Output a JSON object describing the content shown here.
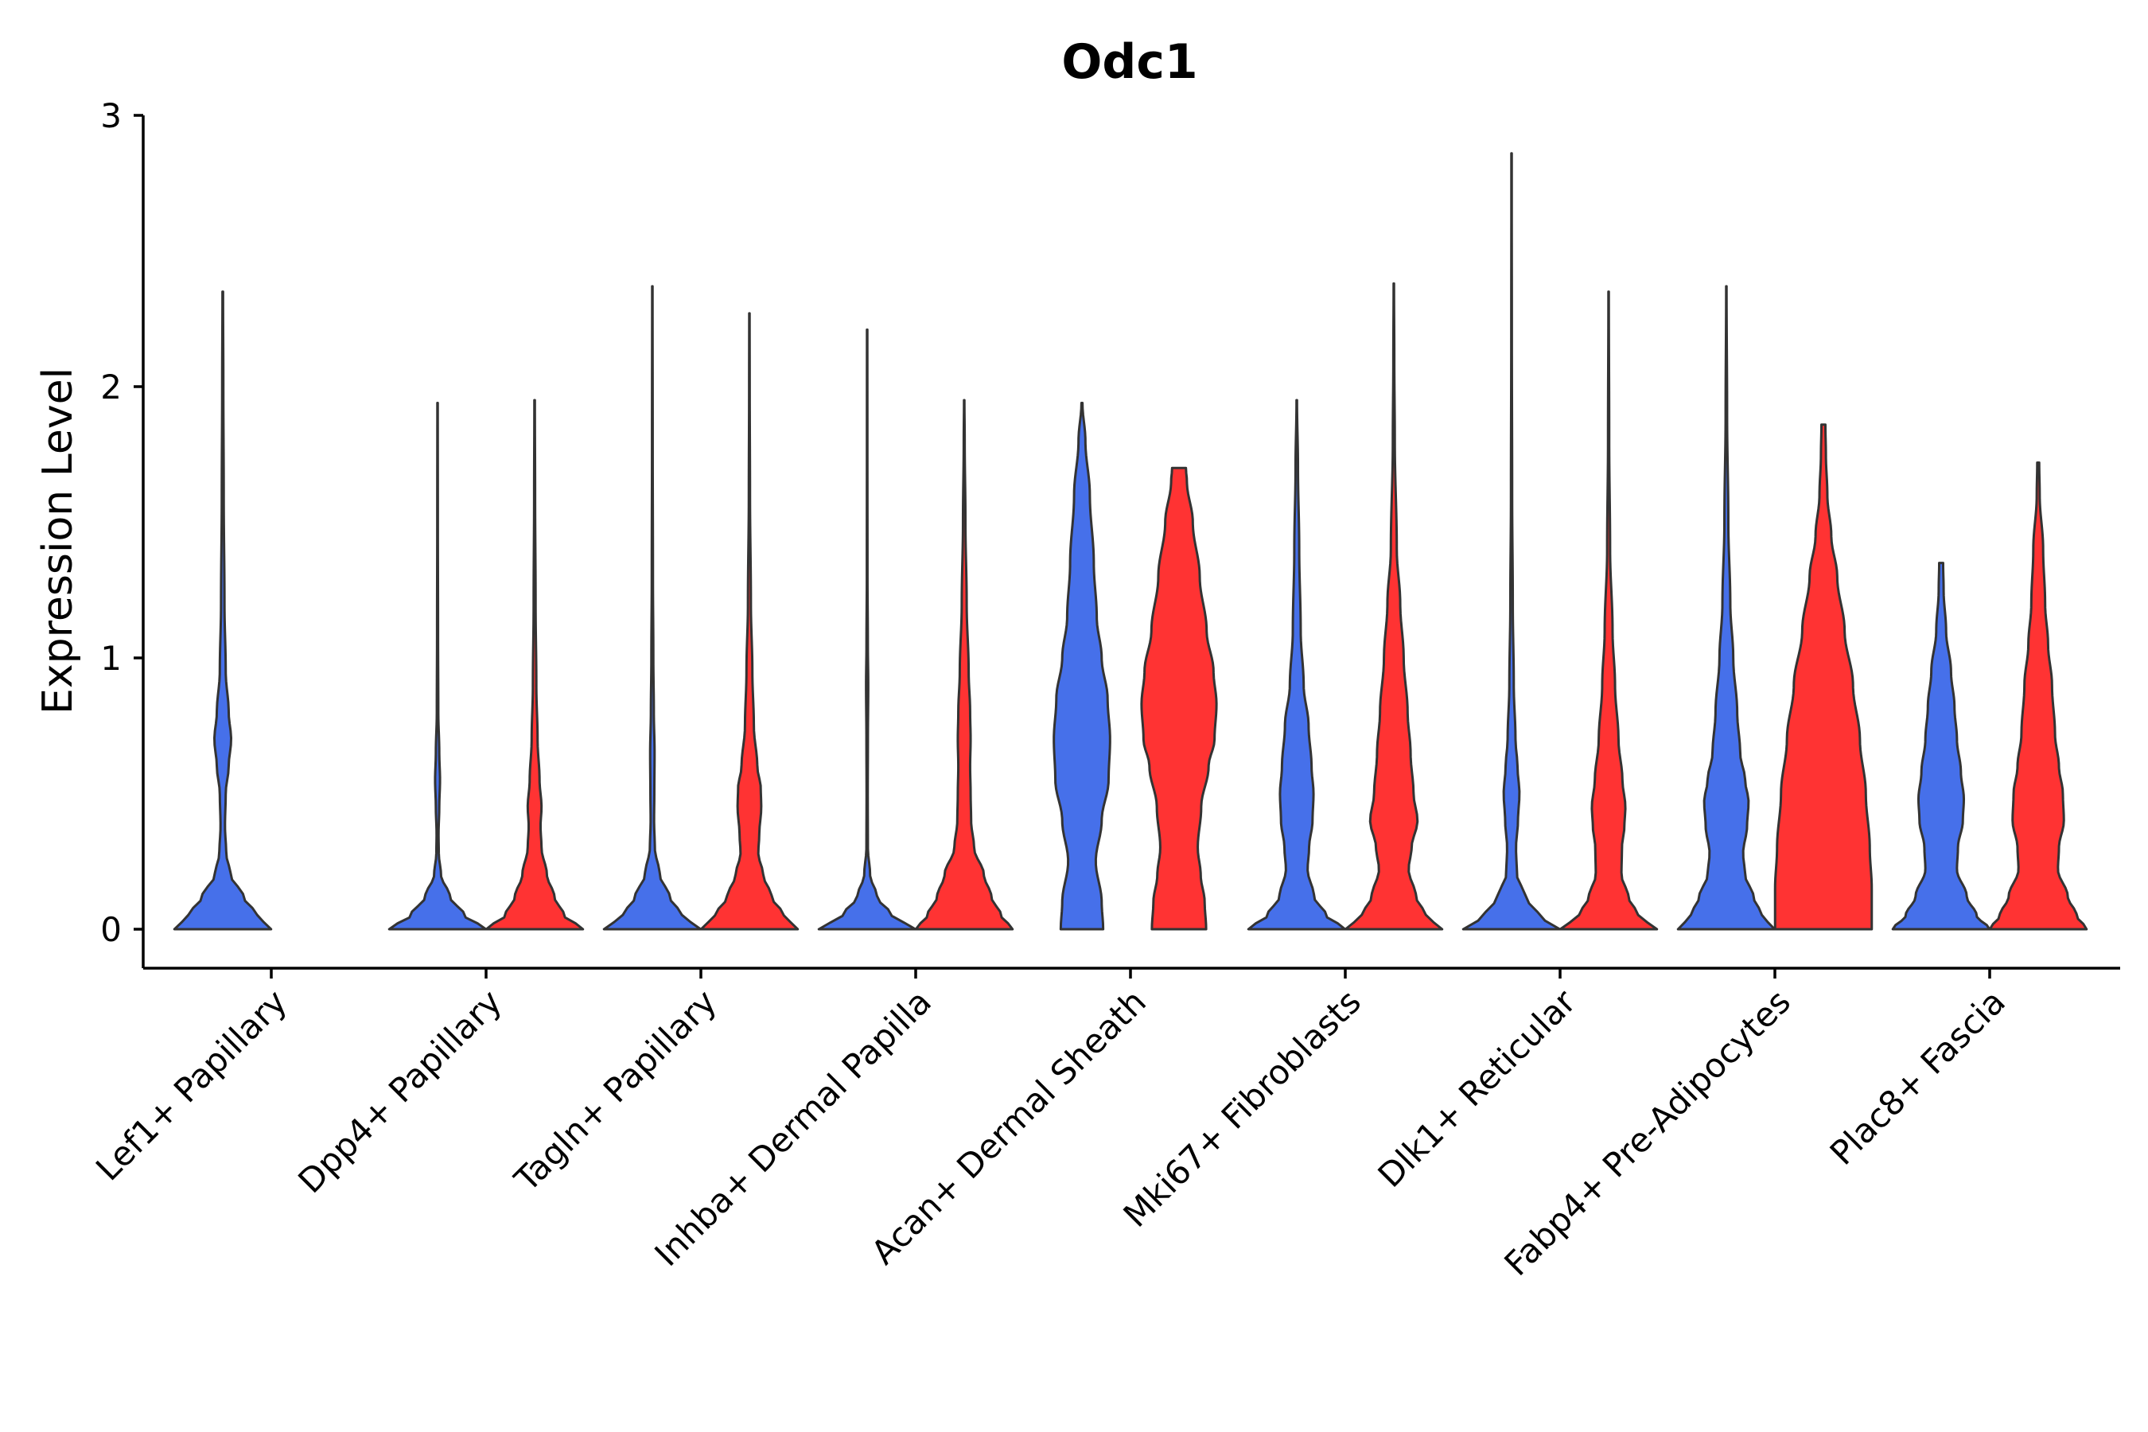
{
  "chart_data": {
    "type": "violin",
    "title": "Odc1",
    "ylabel": "Expression Level",
    "xlabel": "",
    "ylim": [
      -0.15,
      3.0
    ],
    "yticks": [
      0,
      1,
      2,
      3
    ],
    "colors": {
      "group_a": "#4670EA",
      "group_b": "#FF3333"
    },
    "categories": [
      "Lef1+ Papillary",
      "Dpp4+ Papillary",
      "Tagln+ Papillary",
      "Inhba+ Dermal Papilla",
      "Acan+ Dermal Sheath",
      "Mki67+ Fibroblasts",
      "Dlk1+ Reticular",
      "Fabp4+ Pre-Adipocytes",
      "Plac8+ Fascia"
    ],
    "violins": [
      {
        "category": "Lef1+ Papillary",
        "group": "a",
        "max": 2.35,
        "profile": [
          [
            0,
            0.98
          ],
          [
            0.05,
            0.7
          ],
          [
            0.12,
            0.42
          ],
          [
            0.2,
            0.16
          ],
          [
            0.28,
            0.07
          ],
          [
            0.38,
            0.045
          ],
          [
            0.5,
            0.06
          ],
          [
            0.6,
            0.12
          ],
          [
            0.7,
            0.17
          ],
          [
            0.8,
            0.12
          ],
          [
            0.95,
            0.06
          ],
          [
            1.2,
            0.035
          ],
          [
            1.6,
            0.02
          ],
          [
            2.0,
            0.012
          ],
          [
            2.35,
            0.006
          ]
        ]
      },
      {
        "category": "Dpp4+ Papillary",
        "group": "a",
        "max": 1.94,
        "profile": [
          [
            0,
            0.98
          ],
          [
            0.05,
            0.55
          ],
          [
            0.12,
            0.25
          ],
          [
            0.2,
            0.07
          ],
          [
            0.28,
            0.025
          ],
          [
            0.35,
            0.02
          ],
          [
            0.45,
            0.035
          ],
          [
            0.55,
            0.05
          ],
          [
            0.65,
            0.035
          ],
          [
            0.8,
            0.015
          ],
          [
            1.1,
            0.01
          ],
          [
            1.5,
            0.006
          ],
          [
            1.94,
            0.004
          ]
        ]
      },
      {
        "category": "Dpp4+ Papillary",
        "group": "b",
        "max": 1.95,
        "profile": [
          [
            0,
            0.98
          ],
          [
            0.05,
            0.6
          ],
          [
            0.12,
            0.4
          ],
          [
            0.2,
            0.25
          ],
          [
            0.3,
            0.14
          ],
          [
            0.38,
            0.12
          ],
          [
            0.45,
            0.14
          ],
          [
            0.55,
            0.1
          ],
          [
            0.7,
            0.06
          ],
          [
            0.9,
            0.035
          ],
          [
            1.2,
            0.02
          ],
          [
            1.6,
            0.01
          ],
          [
            1.95,
            0.005
          ]
        ]
      },
      {
        "category": "Tagln+ Papillary",
        "group": "a",
        "max": 2.37,
        "profile": [
          [
            0,
            0.98
          ],
          [
            0.05,
            0.6
          ],
          [
            0.12,
            0.35
          ],
          [
            0.2,
            0.15
          ],
          [
            0.3,
            0.05
          ],
          [
            0.4,
            0.035
          ],
          [
            0.5,
            0.04
          ],
          [
            0.65,
            0.045
          ],
          [
            0.8,
            0.03
          ],
          [
            1.0,
            0.02
          ],
          [
            1.3,
            0.012
          ],
          [
            1.8,
            0.007
          ],
          [
            2.37,
            0.004
          ]
        ]
      },
      {
        "category": "Tagln+ Papillary",
        "group": "b",
        "max": 2.27,
        "profile": [
          [
            0,
            0.98
          ],
          [
            0.05,
            0.7
          ],
          [
            0.12,
            0.45
          ],
          [
            0.2,
            0.28
          ],
          [
            0.28,
            0.18
          ],
          [
            0.35,
            0.2
          ],
          [
            0.45,
            0.24
          ],
          [
            0.52,
            0.23
          ],
          [
            0.6,
            0.16
          ],
          [
            0.75,
            0.09
          ],
          [
            0.95,
            0.06
          ],
          [
            1.2,
            0.03
          ],
          [
            1.6,
            0.012
          ],
          [
            2.0,
            0.006
          ],
          [
            2.27,
            0.004
          ]
        ]
      },
      {
        "category": "Inhba+ Dermal Papilla",
        "group": "a",
        "max": 2.21,
        "profile": [
          [
            0,
            0.98
          ],
          [
            0.05,
            0.5
          ],
          [
            0.12,
            0.2
          ],
          [
            0.2,
            0.06
          ],
          [
            0.3,
            0.015
          ],
          [
            0.5,
            0.012
          ],
          [
            0.7,
            0.015
          ],
          [
            0.9,
            0.022
          ],
          [
            1.05,
            0.014
          ],
          [
            1.3,
            0.007
          ],
          [
            1.8,
            0.005
          ],
          [
            2.21,
            0.004
          ]
        ]
      },
      {
        "category": "Inhba+ Dermal Papilla",
        "group": "b",
        "max": 1.95,
        "profile": [
          [
            0,
            0.98
          ],
          [
            0.05,
            0.75
          ],
          [
            0.12,
            0.55
          ],
          [
            0.2,
            0.4
          ],
          [
            0.3,
            0.2
          ],
          [
            0.4,
            0.14
          ],
          [
            0.5,
            0.13
          ],
          [
            0.6,
            0.12
          ],
          [
            0.7,
            0.13
          ],
          [
            0.8,
            0.12
          ],
          [
            0.95,
            0.09
          ],
          [
            1.2,
            0.05
          ],
          [
            1.5,
            0.025
          ],
          [
            1.8,
            0.01
          ],
          [
            1.95,
            0.004
          ]
        ]
      },
      {
        "category": "Acan+ Dermal Sheath",
        "group": "a",
        "max": 1.94,
        "profile": [
          [
            0,
            0.43
          ],
          [
            0.1,
            0.4
          ],
          [
            0.25,
            0.28
          ],
          [
            0.4,
            0.4
          ],
          [
            0.55,
            0.54
          ],
          [
            0.7,
            0.57
          ],
          [
            0.85,
            0.52
          ],
          [
            1.0,
            0.4
          ],
          [
            1.15,
            0.3
          ],
          [
            1.35,
            0.24
          ],
          [
            1.6,
            0.16
          ],
          [
            1.8,
            0.07
          ],
          [
            1.94,
            0.01
          ]
        ]
      },
      {
        "category": "Acan+ Dermal Sheath",
        "group": "b",
        "max": 1.7,
        "profile": [
          [
            0,
            0.55
          ],
          [
            0.1,
            0.52
          ],
          [
            0.2,
            0.44
          ],
          [
            0.3,
            0.38
          ],
          [
            0.45,
            0.45
          ],
          [
            0.6,
            0.6
          ],
          [
            0.7,
            0.72
          ],
          [
            0.83,
            0.76
          ],
          [
            0.95,
            0.7
          ],
          [
            1.1,
            0.56
          ],
          [
            1.3,
            0.42
          ],
          [
            1.5,
            0.28
          ],
          [
            1.65,
            0.16
          ],
          [
            1.7,
            0.14
          ]
        ]
      },
      {
        "category": "Mki67+ Fibroblasts",
        "group": "a",
        "max": 1.95,
        "profile": [
          [
            0,
            0.98
          ],
          [
            0.05,
            0.6
          ],
          [
            0.12,
            0.35
          ],
          [
            0.22,
            0.22
          ],
          [
            0.3,
            0.25
          ],
          [
            0.4,
            0.32
          ],
          [
            0.5,
            0.34
          ],
          [
            0.6,
            0.3
          ],
          [
            0.75,
            0.24
          ],
          [
            0.9,
            0.14
          ],
          [
            1.1,
            0.08
          ],
          [
            1.4,
            0.05
          ],
          [
            1.7,
            0.025
          ],
          [
            1.95,
            0.005
          ]
        ]
      },
      {
        "category": "Mki67+ Fibroblasts",
        "group": "b",
        "max": 2.38,
        "profile": [
          [
            0,
            0.98
          ],
          [
            0.05,
            0.65
          ],
          [
            0.12,
            0.45
          ],
          [
            0.22,
            0.3
          ],
          [
            0.3,
            0.36
          ],
          [
            0.4,
            0.48
          ],
          [
            0.5,
            0.4
          ],
          [
            0.65,
            0.34
          ],
          [
            0.8,
            0.28
          ],
          [
            1.0,
            0.2
          ],
          [
            1.2,
            0.13
          ],
          [
            1.4,
            0.06
          ],
          [
            1.8,
            0.02
          ],
          [
            2.1,
            0.01
          ],
          [
            2.38,
            0.004
          ]
        ]
      },
      {
        "category": "Dlk1+ Reticular",
        "group": "a",
        "max": 2.86,
        "profile": [
          [
            0,
            0.98
          ],
          [
            0.05,
            0.55
          ],
          [
            0.12,
            0.28
          ],
          [
            0.2,
            0.11
          ],
          [
            0.3,
            0.09
          ],
          [
            0.4,
            0.13
          ],
          [
            0.5,
            0.16
          ],
          [
            0.6,
            0.12
          ],
          [
            0.7,
            0.08
          ],
          [
            0.9,
            0.045
          ],
          [
            1.2,
            0.025
          ],
          [
            1.6,
            0.012
          ],
          [
            2.2,
            0.006
          ],
          [
            2.86,
            0.003
          ]
        ]
      },
      {
        "category": "Dlk1+ Reticular",
        "group": "b",
        "max": 2.35,
        "profile": [
          [
            0,
            0.98
          ],
          [
            0.05,
            0.6
          ],
          [
            0.12,
            0.4
          ],
          [
            0.2,
            0.26
          ],
          [
            0.3,
            0.27
          ],
          [
            0.38,
            0.32
          ],
          [
            0.45,
            0.34
          ],
          [
            0.55,
            0.28
          ],
          [
            0.7,
            0.2
          ],
          [
            0.9,
            0.13
          ],
          [
            1.1,
            0.08
          ],
          [
            1.4,
            0.03
          ],
          [
            1.8,
            0.012
          ],
          [
            2.35,
            0.004
          ]
        ]
      },
      {
        "category": "Fabp4+ Pre-Adipocytes",
        "group": "a",
        "max": 2.37,
        "profile": [
          [
            0,
            0.98
          ],
          [
            0.05,
            0.72
          ],
          [
            0.12,
            0.55
          ],
          [
            0.2,
            0.38
          ],
          [
            0.28,
            0.34
          ],
          [
            0.38,
            0.42
          ],
          [
            0.47,
            0.45
          ],
          [
            0.55,
            0.38
          ],
          [
            0.65,
            0.28
          ],
          [
            0.8,
            0.22
          ],
          [
            1.0,
            0.14
          ],
          [
            1.2,
            0.08
          ],
          [
            1.5,
            0.04
          ],
          [
            1.9,
            0.015
          ],
          [
            2.37,
            0.004
          ]
        ]
      },
      {
        "category": "Fabp4+ Pre-Adipocytes",
        "group": "b",
        "max": 1.86,
        "profile": [
          [
            0,
            0.98
          ],
          [
            0.15,
            0.98
          ],
          [
            0.3,
            0.94
          ],
          [
            0.5,
            0.86
          ],
          [
            0.7,
            0.74
          ],
          [
            0.9,
            0.6
          ],
          [
            1.1,
            0.43
          ],
          [
            1.3,
            0.28
          ],
          [
            1.45,
            0.16
          ],
          [
            1.6,
            0.08
          ],
          [
            1.75,
            0.05
          ],
          [
            1.86,
            0.04
          ]
        ]
      },
      {
        "category": "Plac8+ Fascia",
        "group": "a",
        "max": 1.35,
        "profile": [
          [
            0,
            0.98
          ],
          [
            0.05,
            0.72
          ],
          [
            0.12,
            0.52
          ],
          [
            0.22,
            0.32
          ],
          [
            0.3,
            0.34
          ],
          [
            0.4,
            0.44
          ],
          [
            0.48,
            0.46
          ],
          [
            0.58,
            0.4
          ],
          [
            0.7,
            0.32
          ],
          [
            0.82,
            0.27
          ],
          [
            0.95,
            0.2
          ],
          [
            1.1,
            0.1
          ],
          [
            1.25,
            0.05
          ],
          [
            1.35,
            0.04
          ]
        ]
      },
      {
        "category": "Plac8+ Fascia",
        "group": "b",
        "max": 1.72,
        "profile": [
          [
            0,
            0.98
          ],
          [
            0.05,
            0.78
          ],
          [
            0.12,
            0.6
          ],
          [
            0.22,
            0.4
          ],
          [
            0.3,
            0.42
          ],
          [
            0.4,
            0.52
          ],
          [
            0.5,
            0.5
          ],
          [
            0.6,
            0.42
          ],
          [
            0.72,
            0.34
          ],
          [
            0.9,
            0.28
          ],
          [
            1.05,
            0.2
          ],
          [
            1.2,
            0.14
          ],
          [
            1.4,
            0.1
          ],
          [
            1.6,
            0.03
          ],
          [
            1.72,
            0.02
          ]
        ]
      }
    ]
  }
}
